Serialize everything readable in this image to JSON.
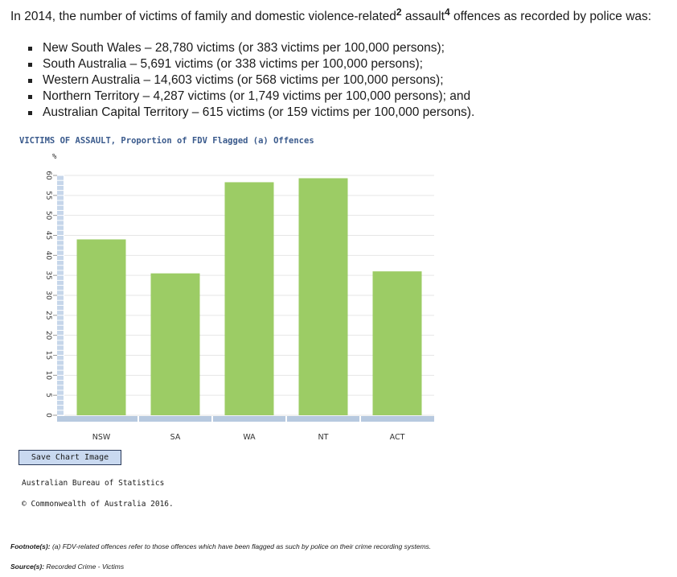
{
  "intro": {
    "text_before": "In 2014, the number of victims of family and domestic violence-related",
    "sup1": "2",
    "text_mid": " assault",
    "sup2": "4",
    "text_after": " offences as recorded by police was:"
  },
  "bullets": [
    "New South Wales – 28,780 victims (or 383 victims per 100,000 persons);",
    "South Australia – 5,691 victims (or 338 victims per 100,000 persons);",
    "Western Australia – 14,603 victims (or 568 victims per 100,000 persons);",
    "Northern Territory – 4,287 victims (or 1,749 victims per 100,000 persons); and",
    "Australian Capital Territory – 615 victims (or 159 victims per 100,000 persons)."
  ],
  "chart_data": {
    "type": "bar",
    "title": "VICTIMS OF ASSAULT, Proportion of FDV Flagged (a) Offences",
    "ylabel": "%",
    "xlabel": "",
    "categories": [
      "NSW",
      "SA",
      "WA",
      "NT",
      "ACT"
    ],
    "values": [
      44,
      35.5,
      58.3,
      59.3,
      36
    ],
    "ylim": [
      0,
      60
    ],
    "yticks": [
      "0",
      "5",
      "10",
      "15",
      "20",
      "25",
      "30",
      "35",
      "40",
      "45",
      "50",
      "55",
      "60"
    ],
    "bar_color": "#9ccc65",
    "grid": true
  },
  "buttons": {
    "save_chart": "Save Chart Image"
  },
  "credits": {
    "source_org": "Australian Bureau of Statistics",
    "copyright": "© Commonwealth of Australia 2016."
  },
  "footnotes": {
    "footnote_label": "Footnote(s):",
    "footnote_text": " (a) FDV-related offences refer to those offences which have been flagged as such by police on their crime recording systems.",
    "source_label": "Source(s):",
    "source_text": " Recorded Crime - Victims"
  }
}
